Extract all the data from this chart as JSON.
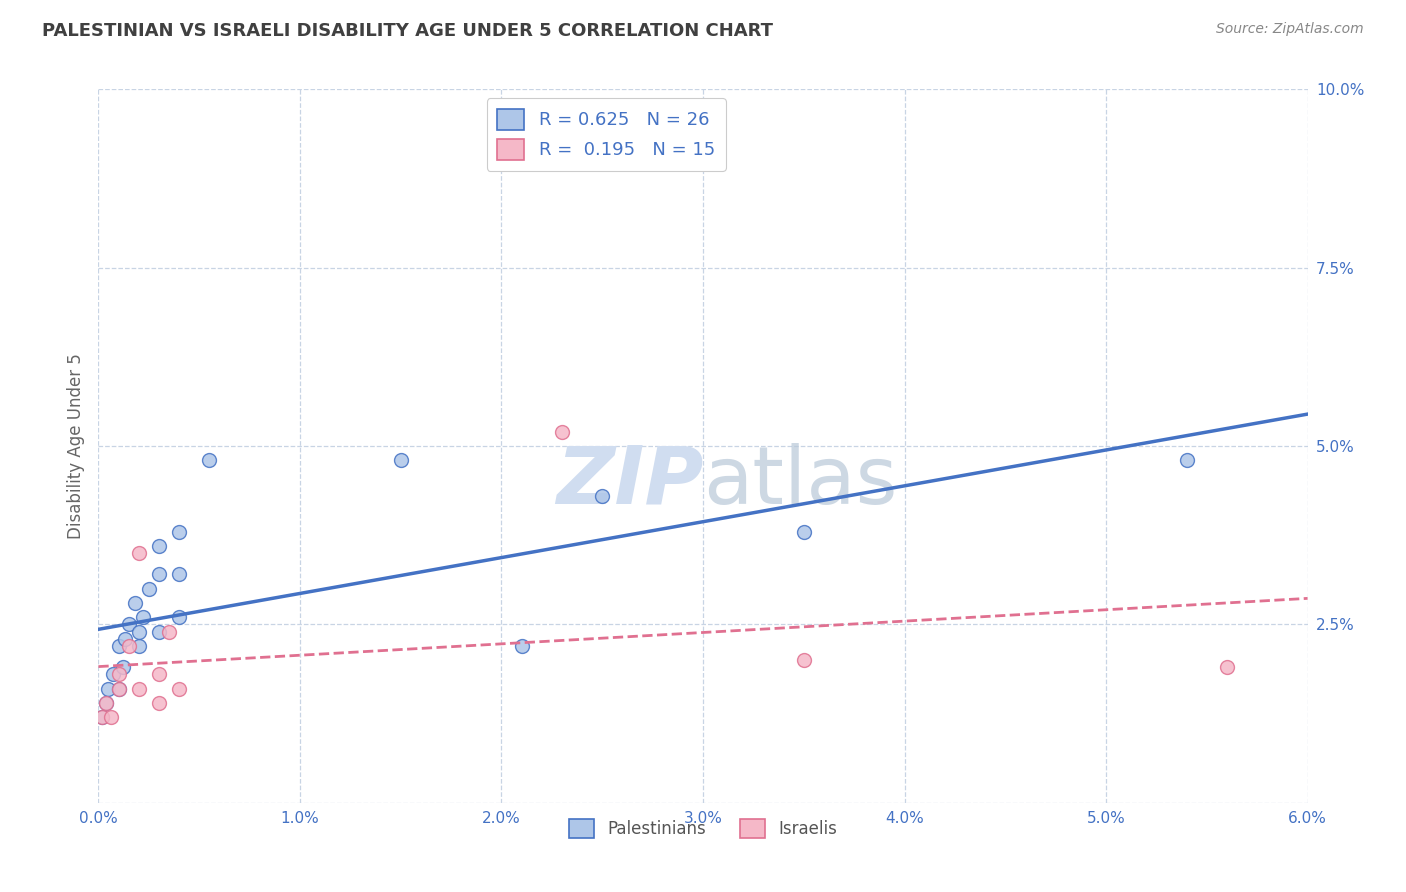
{
  "title": "PALESTINIAN VS ISRAELI DISABILITY AGE UNDER 5 CORRELATION CHART",
  "source": "Source: ZipAtlas.com",
  "ylabel": "Disability Age Under 5",
  "xlim": [
    0.0,
    0.06
  ],
  "ylim": [
    0.0,
    0.1
  ],
  "xticks": [
    0.0,
    0.01,
    0.02,
    0.03,
    0.04,
    0.05,
    0.06
  ],
  "yticks": [
    0.0,
    0.025,
    0.05,
    0.075,
    0.1
  ],
  "xtick_labels": [
    "0.0%",
    "1.0%",
    "2.0%",
    "3.0%",
    "4.0%",
    "5.0%",
    "6.0%"
  ],
  "ytick_labels": [
    "",
    "2.5%",
    "5.0%",
    "7.5%",
    "10.0%"
  ],
  "palestinians_x": [
    0.0002,
    0.0004,
    0.0005,
    0.0007,
    0.001,
    0.001,
    0.0012,
    0.0013,
    0.0015,
    0.0018,
    0.002,
    0.002,
    0.0022,
    0.0025,
    0.003,
    0.003,
    0.003,
    0.004,
    0.004,
    0.004,
    0.0055,
    0.015,
    0.025,
    0.035,
    0.054,
    0.021
  ],
  "palestinians_y": [
    0.012,
    0.014,
    0.016,
    0.018,
    0.016,
    0.022,
    0.019,
    0.023,
    0.025,
    0.028,
    0.022,
    0.024,
    0.026,
    0.03,
    0.032,
    0.036,
    0.024,
    0.038,
    0.032,
    0.026,
    0.048,
    0.048,
    0.043,
    0.038,
    0.048,
    0.022
  ],
  "israelis_x": [
    0.0002,
    0.0004,
    0.0006,
    0.001,
    0.001,
    0.0015,
    0.002,
    0.002,
    0.003,
    0.003,
    0.0035,
    0.004,
    0.023,
    0.035,
    0.056
  ],
  "israelis_y": [
    0.012,
    0.014,
    0.012,
    0.018,
    0.016,
    0.022,
    0.016,
    0.035,
    0.018,
    0.014,
    0.024,
    0.016,
    0.052,
    0.02,
    0.019
  ],
  "pal_R": 0.625,
  "pal_N": 26,
  "isr_R": 0.195,
  "isr_N": 15,
  "pal_color": "#aec6e8",
  "isr_color": "#f5b8c8",
  "pal_line_color": "#4472c4",
  "isr_line_color": "#e07090",
  "background_color": "#ffffff",
  "grid_color": "#c8d4e4",
  "title_color": "#404040",
  "axis_color": "#4472c4",
  "legend_text_color": "#4472c4",
  "watermark_color": "#d0ddf0",
  "marker_size": 100,
  "source_color": "#888888"
}
